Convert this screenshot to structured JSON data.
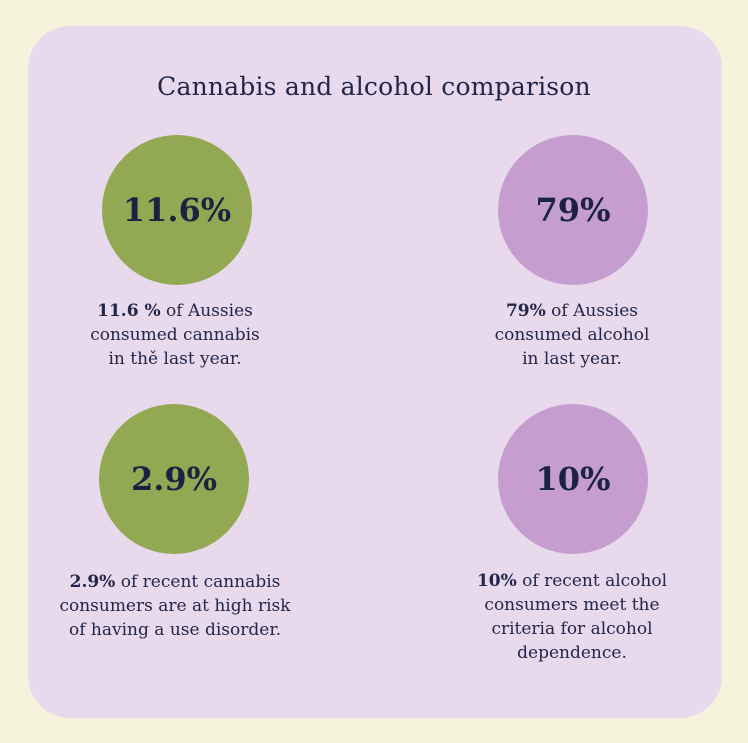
{
  "title": "Cannabis and alcohol comparison",
  "colors": {
    "background": "#f6f3dc",
    "card": "#e8d9ec",
    "cannabis": "#93a852",
    "alcohol": "#c69dcf",
    "text": "#22264a"
  },
  "stats": [
    {
      "value": "11.6%",
      "lead": "11.6 %",
      "text": [
        " of Aussies",
        "consumed cannabis",
        "in thě last year."
      ]
    },
    {
      "value": "79%",
      "lead": "79%",
      "text": [
        " of Aussies",
        "consumed alcohol",
        "in last year."
      ]
    },
    {
      "value": "2.9%",
      "lead": "2.9%",
      "text": [
        " of recent cannabis",
        "consumers are at high risk",
        "of having a use disorder."
      ]
    },
    {
      "value": "10%",
      "lead": "10%",
      "text": [
        " of recent alcohol",
        "consumers meet the",
        "criteria for alcohol",
        "dependence."
      ]
    }
  ]
}
